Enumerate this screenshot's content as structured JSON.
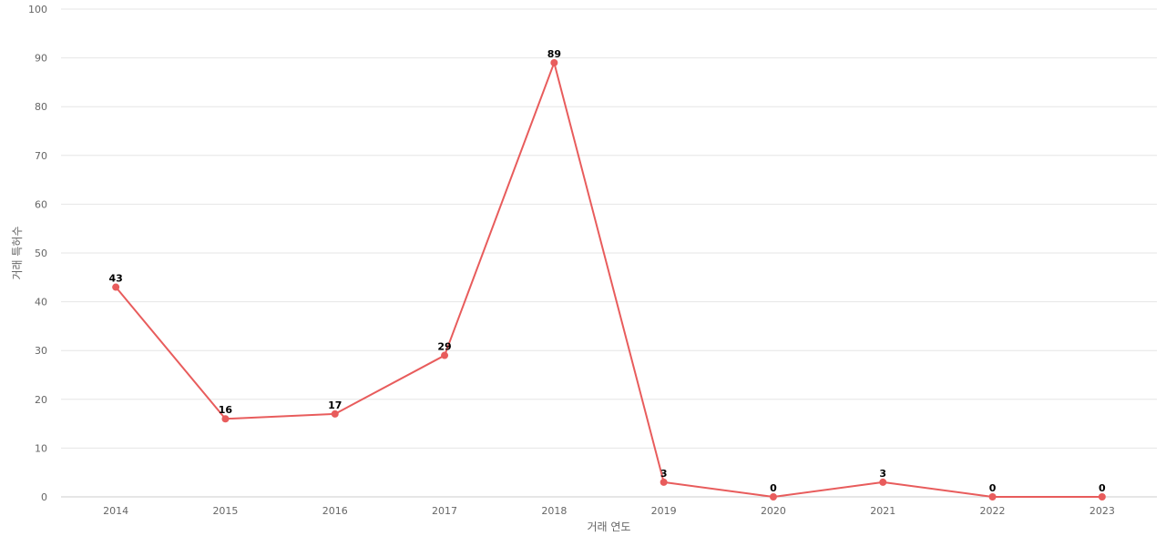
{
  "chart_data": {
    "type": "line",
    "xlabel": "거래 연도",
    "ylabel": "거래 특허수",
    "categories": [
      "2014",
      "2015",
      "2016",
      "2017",
      "2018",
      "2019",
      "2020",
      "2021",
      "2022",
      "2023"
    ],
    "series": [
      {
        "values": [
          43,
          16,
          17,
          29,
          89,
          3,
          0,
          3,
          0,
          0
        ]
      }
    ],
    "ylim": [
      0,
      100
    ],
    "yticks": [
      0,
      10,
      20,
      30,
      40,
      50,
      60,
      70,
      80,
      90,
      100
    ],
    "grid": true,
    "legend": "none",
    "data_labels": true,
    "colors": {
      "line": "#e85c5c",
      "grid": "#e6e6e6",
      "axis": "#cccccc"
    }
  }
}
